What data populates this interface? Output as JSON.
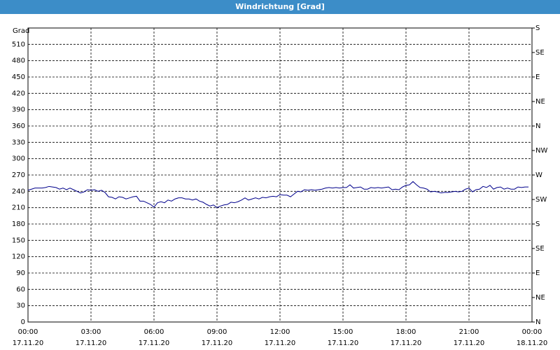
{
  "chart_data": {
    "type": "line",
    "title": "Windrichtung [Grad]",
    "ylabel": "Grad",
    "xlim": [
      0,
      1440
    ],
    "xticks": [
      {
        "value": 0,
        "label": "00:00"
      },
      {
        "value": 180,
        "label": "03:00"
      },
      {
        "value": 360,
        "label": "06:00"
      },
      {
        "value": 540,
        "label": "09:00"
      },
      {
        "value": 720,
        "label": "12:00"
      },
      {
        "value": 900,
        "label": "15:00"
      },
      {
        "value": 1080,
        "label": "18:00"
      },
      {
        "value": 1260,
        "label": "21:00"
      },
      {
        "value": 1440,
        "label": "00:00"
      }
    ],
    "xtick_dates": [
      "17.11.20",
      "17.11.20",
      "17.11.20",
      "17.11.20",
      "17.11.20",
      "17.11.20",
      "17.11.20",
      "17.11.20",
      "18.11.20"
    ],
    "ylim": [
      0,
      540
    ],
    "yticks": [
      0,
      30,
      60,
      90,
      120,
      150,
      180,
      210,
      240,
      270,
      300,
      330,
      360,
      390,
      420,
      450,
      480,
      510
    ],
    "y2lim": [
      0,
      540
    ],
    "y2ticks": [
      {
        "value": 0,
        "label": "N"
      },
      {
        "value": 45,
        "label": "NE"
      },
      {
        "value": 90,
        "label": "E"
      },
      {
        "value": 135,
        "label": "SE"
      },
      {
        "value": 180,
        "label": "S"
      },
      {
        "value": 225,
        "label": "SW"
      },
      {
        "value": 270,
        "label": "W"
      },
      {
        "value": 315,
        "label": "NW"
      },
      {
        "value": 360,
        "label": "N"
      },
      {
        "value": 405,
        "label": "NE"
      },
      {
        "value": 450,
        "label": "E"
      },
      {
        "value": 495,
        "label": "SE"
      },
      {
        "value": 540,
        "label": "S"
      }
    ],
    "grid": true,
    "series": [
      {
        "color": "#00008b",
        "x": [
          0,
          10,
          20,
          30,
          40,
          50,
          60,
          70,
          80,
          90,
          100,
          110,
          120,
          130,
          140,
          150,
          160,
          170,
          180,
          190,
          200,
          210,
          220,
          230,
          240,
          250,
          260,
          270,
          280,
          290,
          300,
          310,
          320,
          330,
          340,
          350,
          360,
          370,
          380,
          390,
          400,
          410,
          420,
          430,
          440,
          450,
          460,
          470,
          480,
          490,
          500,
          510,
          520,
          530,
          540,
          550,
          560,
          570,
          580,
          590,
          600,
          610,
          620,
          630,
          640,
          650,
          660,
          670,
          680,
          690,
          700,
          710,
          720,
          730,
          740,
          750,
          760,
          770,
          780,
          790,
          800,
          810,
          820,
          830,
          840,
          850,
          860,
          870,
          880,
          890,
          900,
          910,
          920,
          930,
          940,
          950,
          960,
          970,
          980,
          990,
          1000,
          1010,
          1020,
          1030,
          1040,
          1050,
          1060,
          1070,
          1080,
          1090,
          1100,
          1110,
          1120,
          1130,
          1140,
          1150,
          1160,
          1170,
          1180,
          1190,
          1200,
          1210,
          1220,
          1230,
          1240,
          1250,
          1260,
          1270,
          1280,
          1290,
          1300,
          1310,
          1320,
          1330,
          1340,
          1350,
          1360,
          1370,
          1380,
          1390,
          1400,
          1410,
          1420,
          1430
        ],
        "values": [
          242,
          244,
          246,
          246,
          246,
          247,
          249,
          248,
          247,
          244,
          246,
          243,
          246,
          243,
          240,
          237,
          239,
          243,
          242,
          243,
          240,
          242,
          238,
          230,
          229,
          226,
          230,
          229,
          226,
          228,
          230,
          231,
          222,
          222,
          219,
          216,
          211,
          219,
          221,
          219,
          224,
          222,
          226,
          228,
          228,
          226,
          226,
          224,
          226,
          222,
          220,
          216,
          213,
          215,
          210,
          213,
          215,
          216,
          220,
          219,
          221,
          224,
          228,
          224,
          226,
          228,
          226,
          229,
          228,
          230,
          231,
          230,
          234,
          233,
          233,
          230,
          235,
          240,
          239,
          243,
          242,
          243,
          242,
          243,
          244,
          246,
          247,
          246,
          247,
          246,
          247,
          247,
          252,
          246,
          247,
          248,
          244,
          244,
          247,
          246,
          247,
          246,
          247,
          248,
          243,
          244,
          243,
          248,
          251,
          252,
          258,
          252,
          247,
          246,
          244,
          239,
          240,
          239,
          237,
          238,
          238,
          239,
          240,
          239,
          240,
          244,
          246,
          239,
          243,
          244,
          249,
          247,
          251,
          244,
          247,
          248,
          244,
          246,
          244,
          244,
          248,
          247,
          248,
          248
        ]
      }
    ]
  }
}
